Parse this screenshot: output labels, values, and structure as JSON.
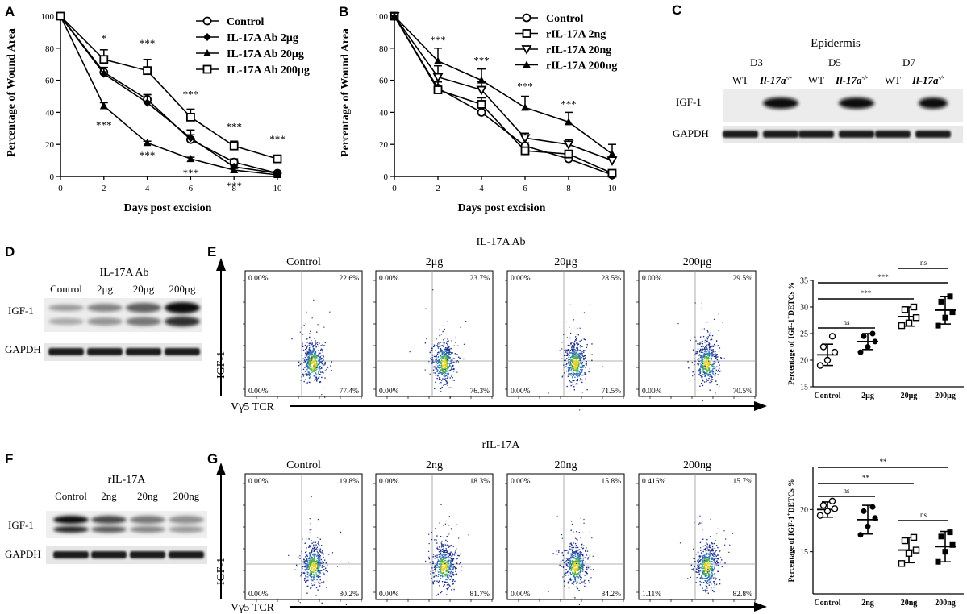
{
  "panels": {
    "A": {
      "letter": "A",
      "ylabel": "Percentage of Wound Area",
      "xlabel": "Days post excision",
      "legend": [
        "Control",
        "IL-17A Ab 2μg",
        "IL-17A Ab 20μg",
        "IL-17A Ab 200μg"
      ]
    },
    "B": {
      "letter": "B",
      "ylabel": "Percentage of Wound Area",
      "xlabel": "Days post excision",
      "legend": [
        "Control",
        "rIL-17A 2ng",
        "rIL-17A 20ng",
        "rIL-17A 200ng"
      ]
    },
    "C": {
      "letter": "C",
      "title": "Epidermis",
      "days": [
        "D3",
        "D5",
        "D7"
      ],
      "wt": "WT",
      "ko": "Il-17a",
      "ko_sup": "-/-",
      "rows": [
        "IGF-1",
        "GAPDH"
      ]
    },
    "D": {
      "letter": "D",
      "title": "IL-17A Ab",
      "lanes": [
        "Control",
        "2μg",
        "20μg",
        "200μg"
      ],
      "rows": [
        "IGF-1",
        "GAPDH"
      ]
    },
    "E": {
      "letter": "E",
      "title": "IL-17A Ab",
      "plots": [
        {
          "name": "Control",
          "ul": "0.00%",
          "ur": "22.6%",
          "ll": "0.00%",
          "lr": "77.4%"
        },
        {
          "name": "2μg",
          "ul": "0.00%",
          "ur": "23.7%",
          "ll": "0.00%",
          "lr": "76.3%"
        },
        {
          "name": "20μg",
          "ul": "0.00%",
          "ur": "28.5%",
          "ll": "0.00%",
          "lr": "71.5%"
        },
        {
          "name": "200μg",
          "ul": "0.00%",
          "ur": "29.5%",
          "ll": "0.00%",
          "lr": "70.5%"
        }
      ],
      "yaxis": "IGF-1",
      "xaxis": "Vγ5 TCR"
    },
    "F": {
      "letter": "F",
      "title": "rIL-17A",
      "lanes": [
        "Control",
        "2ng",
        "20ng",
        "200ng"
      ],
      "rows": [
        "IGF-1",
        "GAPDH"
      ]
    },
    "G": {
      "letter": "G",
      "title": "rIL-17A",
      "plots": [
        {
          "name": "Control",
          "ul": "0.00%",
          "ur": "19.8%",
          "ll": "0.00%",
          "lr": "80.2%"
        },
        {
          "name": "2ng",
          "ul": "0.00%",
          "ur": "18.3%",
          "ll": "0.00%",
          "lr": "81.7%"
        },
        {
          "name": "20ng",
          "ul": "0.00%",
          "ur": "15.8%",
          "ll": "0.00%",
          "lr": "84.2%"
        },
        {
          "name": "200ng",
          "ul": "0.416%",
          "ur": "15.7%",
          "ll": "1.11%",
          "lr": "82.8%"
        }
      ],
      "yaxis": "IGF-1",
      "xaxis": "Vγ5 TCR"
    }
  },
  "stats": {
    "ns": "ns",
    "one": "*",
    "two": "**",
    "three": "***"
  },
  "chart_data": [
    {
      "id": "A",
      "type": "line",
      "xlabel": "Days post excision",
      "ylabel": "Percentage of Wound Area",
      "x": [
        0,
        2,
        4,
        6,
        8,
        10
      ],
      "xlim": [
        0,
        10
      ],
      "ylim": [
        0,
        100
      ],
      "xticks": [
        0,
        2,
        4,
        6,
        8,
        10
      ],
      "yticks": [
        0,
        20,
        40,
        60,
        80,
        100
      ],
      "series": [
        {
          "name": "Control",
          "marker": "circle",
          "values": [
            100,
            65,
            48,
            23,
            9,
            2
          ],
          "err": [
            0,
            3,
            3,
            3,
            2,
            1
          ]
        },
        {
          "name": "IL-17A Ab 2μg",
          "marker": "diamond",
          "values": [
            100,
            64,
            46,
            24,
            6,
            2
          ],
          "err": [
            0,
            4,
            5,
            5,
            1,
            1
          ]
        },
        {
          "name": "IL-17A Ab 20μg",
          "marker": "triangle",
          "values": [
            100,
            44,
            21,
            11,
            4,
            1
          ],
          "err": [
            0,
            2,
            1,
            1,
            1,
            0
          ]
        },
        {
          "name": "IL-17A Ab 200μg",
          "marker": "square",
          "values": [
            100,
            73,
            66,
            37,
            19,
            11
          ],
          "err": [
            0,
            6,
            7,
            5,
            3,
            2
          ]
        }
      ],
      "annotations": [
        {
          "x": 2,
          "y": 84,
          "text": "*"
        },
        {
          "x": 4,
          "y": 81,
          "text": "***"
        },
        {
          "x": 6,
          "y": 49,
          "text": "***"
        },
        {
          "x": 8,
          "y": 29,
          "text": "***"
        },
        {
          "x": 10,
          "y": 21,
          "text": "***"
        },
        {
          "x": 2,
          "y": 30,
          "text": "***"
        },
        {
          "x": 4,
          "y": 11,
          "text": "***"
        },
        {
          "x": 6,
          "y": 0,
          "text": "***"
        },
        {
          "x": 8,
          "y": -8,
          "text": "***"
        }
      ]
    },
    {
      "id": "B",
      "type": "line",
      "xlabel": "Days post excision",
      "ylabel": "Percentage of Wound Area",
      "x": [
        0,
        2,
        4,
        6,
        8,
        10
      ],
      "xlim": [
        0,
        10
      ],
      "ylim": [
        0,
        100
      ],
      "xticks": [
        0,
        2,
        4,
        6,
        8,
        10
      ],
      "yticks": [
        0,
        20,
        40,
        60,
        80,
        100
      ],
      "series": [
        {
          "name": "Control",
          "marker": "circle",
          "values": [
            100,
            55,
            40,
            19,
            11,
            1
          ],
          "err": [
            0,
            4,
            3,
            2,
            2,
            1
          ]
        },
        {
          "name": "rIL-17A 2ng",
          "marker": "square",
          "values": [
            100,
            54,
            45,
            16,
            14,
            2
          ],
          "err": [
            0,
            5,
            4,
            2,
            2,
            1
          ]
        },
        {
          "name": "rIL-17A 20ng",
          "marker": "triangle-down",
          "values": [
            100,
            62,
            54,
            24,
            20,
            10
          ],
          "err": [
            0,
            7,
            5,
            3,
            3,
            2
          ]
        },
        {
          "name": "rIL-17A 200ng",
          "marker": "triangle",
          "values": [
            100,
            72,
            60,
            43,
            34,
            14
          ],
          "err": [
            0,
            8,
            7,
            7,
            6,
            6
          ]
        }
      ],
      "annotations": [
        {
          "x": 2,
          "y": 83,
          "text": "***"
        },
        {
          "x": 4,
          "y": 70,
          "text": "***"
        },
        {
          "x": 6,
          "y": 54,
          "text": "***"
        },
        {
          "x": 8,
          "y": 43,
          "text": "***"
        }
      ]
    },
    {
      "id": "E-scatter",
      "type": "scatter",
      "ylabel": "Percentage of IGF-1+DETCs %",
      "categories": [
        "Control",
        "2μg",
        "20μg",
        "200μg"
      ],
      "ylim": [
        15,
        35
      ],
      "yticks": [
        15,
        20,
        25,
        30,
        35
      ],
      "points": [
        [
          19,
          20,
          21.5,
          22.5,
          24.5
        ],
        [
          21.5,
          22.5,
          23.5,
          24.5,
          25
        ],
        [
          26.5,
          27,
          28,
          29.5,
          30
        ],
        [
          26.5,
          28,
          29,
          31,
          32
        ]
      ],
      "means": [
        21,
        23.5,
        28.2,
        29.4
      ],
      "sd": [
        2.0,
        1.5,
        1.8,
        2.6
      ],
      "comparisons": [
        {
          "from": 0,
          "to": 1,
          "label": "ns"
        },
        {
          "from": 0,
          "to": 2,
          "label": "***"
        },
        {
          "from": 0,
          "to": 3,
          "label": "***"
        },
        {
          "from": 2,
          "to": 3,
          "label": "ns"
        }
      ]
    },
    {
      "id": "G-scatter",
      "type": "scatter",
      "ylabel": "Percentage of IGF-1+DETCs %",
      "categories": [
        "Control",
        "2ng",
        "20ng",
        "200ng"
      ],
      "ylim": [
        10,
        25
      ],
      "yticks": [
        15,
        20
      ],
      "points": [
        [
          19.3,
          19.8,
          20.1,
          20.5,
          21.0
        ],
        [
          17.0,
          18.0,
          19.0,
          19.8,
          20.3
        ],
        [
          13.6,
          14.8,
          15.2,
          16.3,
          16.7
        ],
        [
          13.8,
          15.0,
          15.8,
          16.8,
          17.3
        ]
      ],
      "means": [
        20.0,
        18.8,
        15.2,
        15.6
      ],
      "sd": [
        0.9,
        1.7,
        1.5,
        1.8
      ],
      "comparisons": [
        {
          "from": 0,
          "to": 1,
          "label": "ns"
        },
        {
          "from": 0,
          "to": 2,
          "label": "**"
        },
        {
          "from": 0,
          "to": 3,
          "label": "**"
        },
        {
          "from": 2,
          "to": 3,
          "label": "ns"
        }
      ]
    }
  ]
}
